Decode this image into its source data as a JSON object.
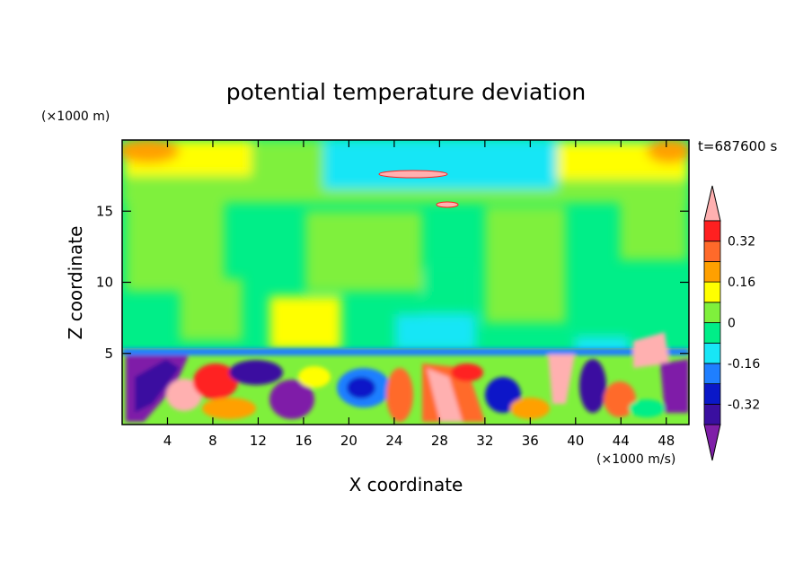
{
  "chart_data": {
    "type": "heatmap",
    "title": "potential temperature deviation",
    "xlabel": "X coordinate",
    "ylabel": "Z coordinate",
    "x_unit": "(×1000 m/s)",
    "y_unit": "(×1000 m)",
    "time_label": "t=687600 s",
    "xlim": [
      0,
      50
    ],
    "ylim": [
      0,
      20
    ],
    "x_ticks": [
      4,
      8,
      12,
      16,
      20,
      24,
      28,
      32,
      36,
      40,
      44,
      48
    ],
    "y_ticks": [
      5,
      10,
      15
    ],
    "colorbar": {
      "levels": [
        -0.4,
        -0.32,
        -0.24,
        -0.16,
        -0.08,
        0,
        0.08,
        0.16,
        0.24,
        0.32,
        0.4
      ],
      "tick_labels": [
        "0.32",
        "0.16",
        "0",
        "-0.16",
        "-0.32"
      ],
      "tick_values": [
        0.32,
        0.16,
        0,
        -0.16,
        -0.32
      ],
      "colors": [
        "#7f1fa8",
        "#3a0fa0",
        "#0a18c8",
        "#1f7fff",
        "#18e6f6",
        "#00ee88",
        "#7ff03c",
        "#ffff00",
        "#ffa000",
        "#ff6a2a",
        "#ff2020",
        "#ffb0b0"
      ],
      "extend": "both"
    }
  }
}
